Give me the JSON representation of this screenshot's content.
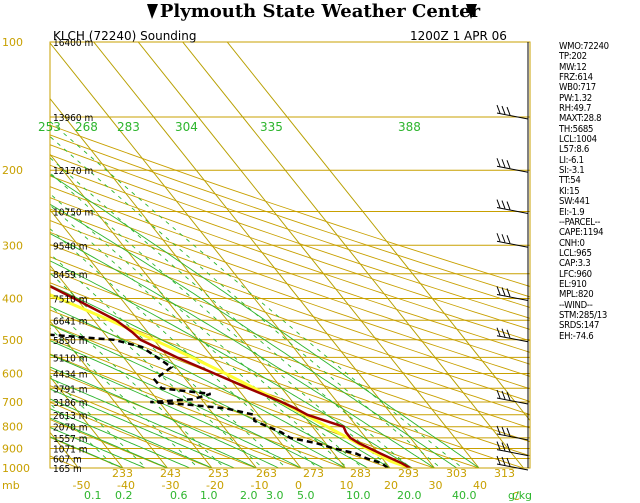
{
  "header": {
    "title": "Plymouth State Weather Center",
    "station": "KLCH (72240) Sounding",
    "time": "1200Z  1 APR 06"
  },
  "colors": {
    "temperature": "#9b0000",
    "dewpoint": "#000000",
    "parcel": "#ffff33",
    "isobar": "#c8a000",
    "isotherm": "#b8a000",
    "dry_adiabat": "#c8a000",
    "moist_adiabat": "#2db52d",
    "mixing_ratio": "#2db52d",
    "label_green": "#2db52d",
    "label_yellow": "#c8a000"
  },
  "chart_data": {
    "type": "skew-t",
    "pressure_levels": [
      100,
      200,
      300,
      400,
      500,
      600,
      700,
      800,
      900,
      1000
    ],
    "pressure_unit": "mb",
    "heights": [
      {
        "label": "16400 m",
        "p": 100
      },
      {
        "label": "13960 m",
        "p": 150
      },
      {
        "label": "12170 m",
        "p": 200
      },
      {
        "label": "10750 m",
        "p": 250
      },
      {
        "label": "9540 m",
        "p": 300
      },
      {
        "label": "8459 m",
        "p": 350
      },
      {
        "label": "7510 m",
        "p": 400
      },
      {
        "label": "6641 m",
        "p": 450
      },
      {
        "label": "5850 m",
        "p": 500
      },
      {
        "label": "5110 m",
        "p": 550
      },
      {
        "label": "4434 m",
        "p": 600
      },
      {
        "label": "3791 m",
        "p": 650
      },
      {
        "label": "3186 m",
        "p": 700
      },
      {
        "label": "2613 m",
        "p": 750
      },
      {
        "label": "2070 m",
        "p": 800
      },
      {
        "label": "1557 m",
        "p": 850
      },
      {
        "label": "1071 m",
        "p": 900
      },
      {
        "label": "607 m",
        "p": 950
      },
      {
        "label": "165 m",
        "p": 1000
      }
    ],
    "temperature_axis": {
      "label": "C",
      "ticks": [
        -50,
        -40,
        -30,
        -20,
        -10,
        0,
        10,
        20,
        30,
        40
      ],
      "tick_labels": [
        "-50",
        "-40",
        "-30",
        "-20",
        "-10",
        "0",
        "10",
        "20",
        "30",
        "40"
      ]
    },
    "theta_labels_bottom": [
      "233",
      "243",
      "253",
      "263",
      "273",
      "283",
      "293",
      "303",
      "313"
    ],
    "theta_labels_top": [
      "253",
      "268",
      "283",
      "304",
      "335",
      "388"
    ],
    "mixing_ratio_labels": [
      "0.1",
      "0.2",
      "0.6",
      "1.0",
      "2.0",
      "3.0",
      "5.0",
      "10.0",
      "20.0",
      "40.0"
    ],
    "mixing_ratio_unit": "g/kg",
    "temperature_profile": [
      {
        "p": 1000,
        "t": 24.5
      },
      {
        "p": 975,
        "t": 23.5
      },
      {
        "p": 950,
        "t": 22.0
      },
      {
        "p": 925,
        "t": 20.5
      },
      {
        "p": 900,
        "t": 19.0
      },
      {
        "p": 875,
        "t": 17.5
      },
      {
        "p": 850,
        "t": 16.5
      },
      {
        "p": 825,
        "t": 16.5
      },
      {
        "p": 800,
        "t": 17.0
      },
      {
        "p": 775,
        "t": 14.0
      },
      {
        "p": 750,
        "t": 11.0
      },
      {
        "p": 725,
        "t": 9.5
      },
      {
        "p": 700,
        "t": 7.5
      },
      {
        "p": 650,
        "t": 2.5
      },
      {
        "p": 600,
        "t": -2.5
      },
      {
        "p": 550,
        "t": -8.0
      },
      {
        "p": 500,
        "t": -13.0
      },
      {
        "p": 480,
        "t": -13.5
      },
      {
        "p": 450,
        "t": -15.0
      },
      {
        "p": 400,
        "t": -20.5
      },
      {
        "p": 350,
        "t": -27.0
      },
      {
        "p": 300,
        "t": -35.0
      },
      {
        "p": 250,
        "t": -43.5
      },
      {
        "p": 200,
        "t": -53.5
      },
      {
        "p": 180,
        "t": -52.5
      },
      {
        "p": 170,
        "t": -50.0
      },
      {
        "p": 150,
        "t": -47.0
      },
      {
        "p": 125,
        "t": -47.0
      },
      {
        "p": 100,
        "t": -49.0
      }
    ],
    "dewpoint_profile": [
      {
        "p": 1000,
        "t": 19.5
      },
      {
        "p": 975,
        "t": 19.0
      },
      {
        "p": 950,
        "t": 16.5
      },
      {
        "p": 925,
        "t": 15.0
      },
      {
        "p": 900,
        "t": 11.0
      },
      {
        "p": 875,
        "t": 8.0
      },
      {
        "p": 850,
        "t": 3.0
      },
      {
        "p": 825,
        "t": 2.0
      },
      {
        "p": 800,
        "t": 0.0
      },
      {
        "p": 775,
        "t": -2.0
      },
      {
        "p": 750,
        "t": -1.0
      },
      {
        "p": 725,
        "t": -6.0
      },
      {
        "p": 710,
        "t": -14.0
      },
      {
        "p": 700,
        "t": -22.0
      },
      {
        "p": 690,
        "t": -12.0
      },
      {
        "p": 670,
        "t": -7.0
      },
      {
        "p": 650,
        "t": -17.0
      },
      {
        "p": 620,
        "t": -17.0
      },
      {
        "p": 580,
        "t": -11.0
      },
      {
        "p": 520,
        "t": -14.0
      },
      {
        "p": 500,
        "t": -19.0
      },
      {
        "p": 480,
        "t": -39.0
      },
      {
        "p": 450,
        "t": -47.0
      },
      {
        "p": 420,
        "t": -47.0
      },
      {
        "p": 330,
        "t": -52.0
      },
      {
        "p": 300,
        "t": -53.0
      },
      {
        "p": 250,
        "t": -58.0
      },
      {
        "p": 200,
        "t": -70.0
      },
      {
        "p": 180,
        "t": -72.0
      },
      {
        "p": 170,
        "t": -69.0
      },
      {
        "p": 150,
        "t": -66.0
      },
      {
        "p": 120,
        "t": -70.0
      },
      {
        "p": 100,
        "t": -70.0
      }
    ],
    "parcel_profile": [
      {
        "p": 1000,
        "t": 24.5
      },
      {
        "p": 975,
        "t": 22.3
      },
      {
        "p": 965,
        "t": 21.4
      },
      {
        "p": 900,
        "t": 18.3
      },
      {
        "p": 850,
        "t": 16.0
      },
      {
        "p": 800,
        "t": 13.3
      },
      {
        "p": 750,
        "t": 10.5
      },
      {
        "p": 700,
        "t": 7.4
      },
      {
        "p": 650,
        "t": 3.9
      },
      {
        "p": 600,
        "t": 0.0
      },
      {
        "p": 550,
        "t": -4.6
      },
      {
        "p": 500,
        "t": -10.0
      },
      {
        "p": 450,
        "t": -16.4
      },
      {
        "p": 400,
        "t": -23.9
      },
      {
        "p": 350,
        "t": -32.6
      },
      {
        "p": 300,
        "t": -42.6
      },
      {
        "p": 250,
        "t": -53.4
      },
      {
        "p": 200,
        "t": -64.0
      },
      {
        "p": 150,
        "t": -76.0
      },
      {
        "p": 120,
        "t": -85.0
      }
    ],
    "wind_levels": [
      150,
      200,
      250,
      300,
      400,
      500,
      700,
      850,
      925,
      1000
    ]
  },
  "indices": [
    "WMO:72240",
    "TP:202",
    "MW:12",
    "FRZ:614",
    "WB0:717",
    "PW:1.32",
    "RH:49.7",
    "MAXT:28.8",
    "TH:5685",
    "LCL:1004",
    "L57:8.6",
    "LI:-6.1",
    "SI:-3.1",
    "TT:54",
    "KI:15",
    "SW:441",
    "EI:-1.9",
    "--PARCEL--",
    "CAPE:1194",
    "CNH:0",
    "LCL:965",
    "CAP:3.3",
    "LFC:960",
    "EL:910",
    "MPL:820",
    "--WIND--",
    "STM:285/13",
    "SRDS:147",
    "EH:-74.6"
  ]
}
